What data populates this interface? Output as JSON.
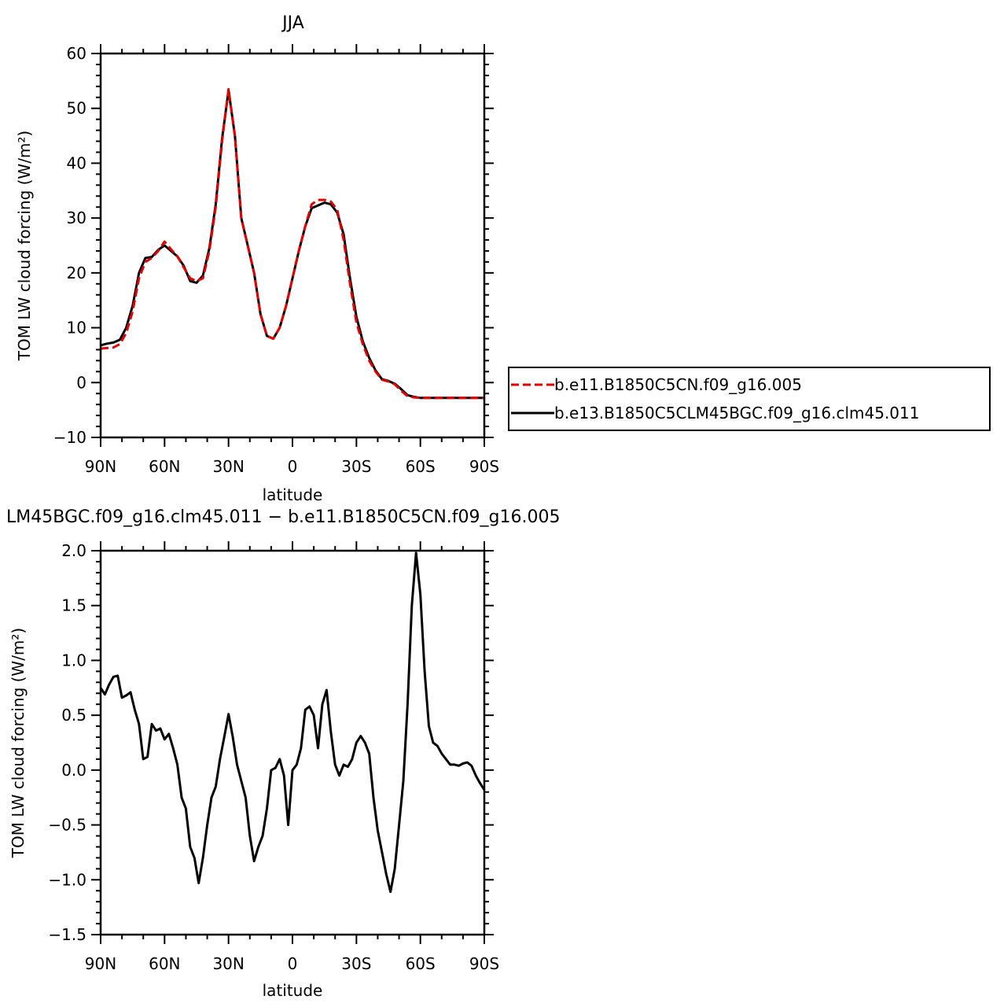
{
  "chart_data": [
    {
      "type": "line",
      "title": "JJA",
      "xlabel": "latitude",
      "ylabel": "TOM LW cloud forcing (W/m²)",
      "xlim": [
        90,
        -90
      ],
      "ylim": [
        -10,
        60
      ],
      "x_ticks": [
        90,
        60,
        30,
        0,
        -30,
        -60,
        -90
      ],
      "x_tick_labels": [
        "90N",
        "60N",
        "30N",
        "0",
        "30S",
        "60S",
        "90S"
      ],
      "y_ticks": [
        -10,
        0,
        10,
        20,
        30,
        40,
        50,
        60
      ],
      "y_tick_labels": [
        "−10",
        "0",
        "10",
        "20",
        "30",
        "40",
        "50",
        "60"
      ],
      "legend_position": "right",
      "series": [
        {
          "name": "b.e11.B1850C5CN.f09_g16.005",
          "color": "#e00000",
          "dash": "dashed",
          "x": [
            90,
            87,
            84,
            81,
            78,
            75,
            72,
            69,
            66,
            63,
            60,
            57,
            54,
            51,
            48,
            45,
            42,
            39,
            36,
            33,
            30,
            27,
            24,
            21,
            18,
            15,
            12,
            9,
            6,
            3,
            0,
            -3,
            -6,
            -9,
            -12,
            -15,
            -18,
            -21,
            -24,
            -27,
            -30,
            -33,
            -36,
            -39,
            -42,
            -45,
            -48,
            -51,
            -54,
            -57,
            -60,
            -63,
            -66,
            -69,
            -72,
            -75,
            -78,
            -81,
            -84,
            -87,
            -90
          ],
          "values": [
            6.2,
            6.3,
            6.4,
            7.0,
            9.0,
            13.0,
            19.0,
            22.0,
            22.7,
            24.0,
            25.7,
            24.3,
            23.0,
            21.0,
            19.0,
            18.5,
            19.0,
            24.0,
            32.0,
            44.0,
            53.5,
            45.0,
            30.0,
            25.0,
            20.0,
            12.5,
            8.5,
            8.0,
            10.0,
            14.0,
            19.0,
            24.0,
            28.5,
            32.5,
            33.3,
            33.3,
            33.0,
            31.5,
            26.0,
            18.0,
            11.0,
            7.0,
            4.0,
            2.0,
            0.5,
            0.2,
            -0.3,
            -1.5,
            -2.5,
            -2.7,
            -2.8,
            -2.8,
            -2.8,
            -2.8,
            -2.8,
            -2.8,
            -2.8,
            -2.8,
            -2.8,
            -2.8,
            -2.8
          ]
        },
        {
          "name": "b.e13.B1850C5CLM45BGC.f09_g16.clm45.011",
          "color": "#000000",
          "dash": "solid",
          "x": [
            90,
            87,
            84,
            81,
            78,
            75,
            72,
            69,
            66,
            63,
            60,
            57,
            54,
            51,
            48,
            45,
            42,
            39,
            36,
            33,
            30,
            27,
            24,
            21,
            18,
            15,
            12,
            9,
            6,
            3,
            0,
            -3,
            -6,
            -9,
            -12,
            -15,
            -18,
            -21,
            -24,
            -27,
            -30,
            -33,
            -36,
            -39,
            -42,
            -45,
            -48,
            -51,
            -54,
            -57,
            -60,
            -63,
            -66,
            -69,
            -72,
            -75,
            -78,
            -81,
            -84,
            -87,
            -90
          ],
          "values": [
            6.8,
            7.1,
            7.3,
            7.8,
            10.0,
            14.0,
            20.0,
            22.7,
            22.9,
            24.2,
            25.0,
            24.0,
            23.0,
            21.3,
            18.5,
            18.2,
            19.5,
            24.5,
            32.5,
            44.5,
            53.3,
            45.0,
            30.0,
            25.0,
            20.0,
            12.5,
            8.5,
            8.0,
            10.0,
            14.0,
            19.0,
            24.0,
            28.5,
            31.8,
            32.3,
            32.8,
            32.5,
            31.0,
            27.0,
            19.0,
            12.0,
            7.5,
            4.5,
            2.2,
            0.6,
            0.3,
            -0.2,
            -1.2,
            -2.3,
            -2.6,
            -2.8,
            -2.8,
            -2.8,
            -2.8,
            -2.8,
            -2.8,
            -2.8,
            -2.8,
            -2.8,
            -2.8,
            -2.8
          ]
        }
      ]
    },
    {
      "type": "line",
      "title": "LM45BGC.f09_g16.clm45.011 − b.e11.B1850C5CN.f09_g16.005",
      "xlabel": "latitude",
      "ylabel": "TOM LW cloud forcing (W/m²)",
      "xlim": [
        90,
        -90
      ],
      "ylim": [
        -1.5,
        2.0
      ],
      "x_ticks": [
        90,
        60,
        30,
        0,
        -30,
        -60,
        -90
      ],
      "x_tick_labels": [
        "90N",
        "60N",
        "30N",
        "0",
        "30S",
        "60S",
        "90S"
      ],
      "y_ticks": [
        -1.5,
        -1.0,
        -0.5,
        0.0,
        0.5,
        1.0,
        1.5,
        2.0
      ],
      "y_tick_labels": [
        "−1.5",
        "−1.0",
        "−0.5",
        "0.0",
        "0.5",
        "1.0",
        "1.5",
        "2.0"
      ],
      "series": [
        {
          "color": "#000000",
          "dash": "solid",
          "x": [
            90,
            88,
            86,
            84,
            82,
            80,
            78,
            76,
            74,
            72,
            70,
            68,
            66,
            64,
            62,
            60,
            58,
            56,
            54,
            52,
            50,
            48,
            46,
            44,
            42,
            40,
            38,
            36,
            34,
            32,
            30,
            28,
            26,
            24,
            22,
            20,
            18,
            16,
            14,
            12,
            10,
            8,
            6,
            4,
            2,
            0,
            -2,
            -4,
            -6,
            -8,
            -10,
            -12,
            -14,
            -16,
            -18,
            -20,
            -22,
            -24,
            -26,
            -28,
            -30,
            -32,
            -34,
            -36,
            -38,
            -40,
            -42,
            -44,
            -46,
            -48,
            -50,
            -52,
            -54,
            -56,
            -58,
            -60,
            -62,
            -64,
            -66,
            -68,
            -70,
            -72,
            -74,
            -76,
            -78,
            -80,
            -82,
            -84,
            -86,
            -88,
            -90
          ],
          "values": [
            0.75,
            0.69,
            0.78,
            0.85,
            0.86,
            0.66,
            0.68,
            0.71,
            0.55,
            0.42,
            0.1,
            0.12,
            0.42,
            0.36,
            0.38,
            0.28,
            0.33,
            0.2,
            0.05,
            -0.25,
            -0.35,
            -0.7,
            -0.8,
            -1.03,
            -0.8,
            -0.5,
            -0.25,
            -0.15,
            0.1,
            0.3,
            0.51,
            0.3,
            0.05,
            -0.1,
            -0.25,
            -0.6,
            -0.83,
            -0.7,
            -0.6,
            -0.35,
            0.0,
            0.02,
            0.1,
            -0.05,
            -0.5,
            0.0,
            0.05,
            0.2,
            0.55,
            0.58,
            0.5,
            0.2,
            0.6,
            0.73,
            0.35,
            0.05,
            -0.05,
            0.05,
            0.03,
            0.1,
            0.25,
            0.31,
            0.25,
            0.15,
            -0.25,
            -0.55,
            -0.75,
            -0.95,
            -1.11,
            -0.9,
            -0.5,
            -0.1,
            0.6,
            1.5,
            1.98,
            1.6,
            0.9,
            0.4,
            0.25,
            0.22,
            0.15,
            0.1,
            0.05,
            0.05,
            0.04,
            0.06,
            0.07,
            0.04,
            -0.05,
            -0.12,
            -0.18
          ]
        }
      ]
    }
  ]
}
